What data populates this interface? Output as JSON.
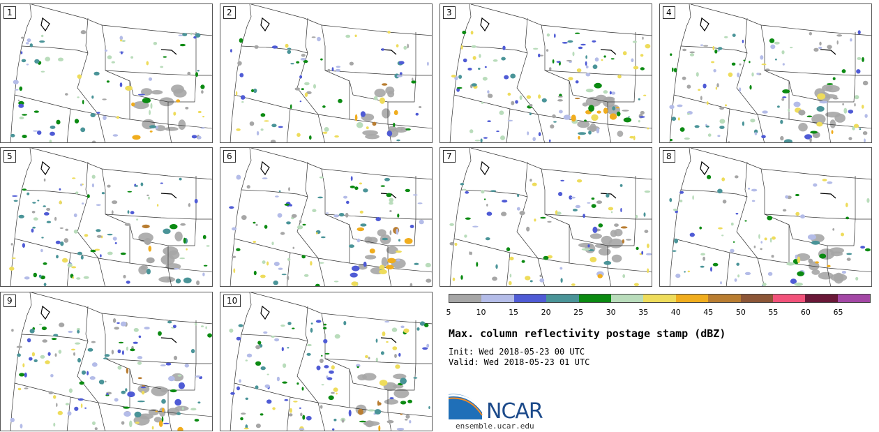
{
  "panels": [
    {
      "label": "1"
    },
    {
      "label": "2"
    },
    {
      "label": "3"
    },
    {
      "label": "4"
    },
    {
      "label": "5"
    },
    {
      "label": "6"
    },
    {
      "label": "7"
    },
    {
      "label": "8"
    },
    {
      "label": "9"
    },
    {
      "label": "10"
    }
  ],
  "colorbar": {
    "colors": [
      "#a6a6a6",
      "#b4bce8",
      "#4f5bd5",
      "#4a9498",
      "#0b8a12",
      "#b9dcbb",
      "#eedc5b",
      "#f0ad1e",
      "#b97d31",
      "#8c5637",
      "#f2527a",
      "#6a1838",
      "#a347a5"
    ],
    "ticks": [
      "5",
      "10",
      "15",
      "20",
      "25",
      "30",
      "35",
      "40",
      "45",
      "50",
      "55",
      "60",
      "65"
    ]
  },
  "title": "Max. column reflectivity postage stamp (dBZ)",
  "init": "Init: Wed 2018-05-23 00 UTC",
  "valid": "Valid: Wed 2018-05-23 01 UTC",
  "logo": {
    "text": "NCAR",
    "url": "ensemble.ucar.edu"
  }
}
